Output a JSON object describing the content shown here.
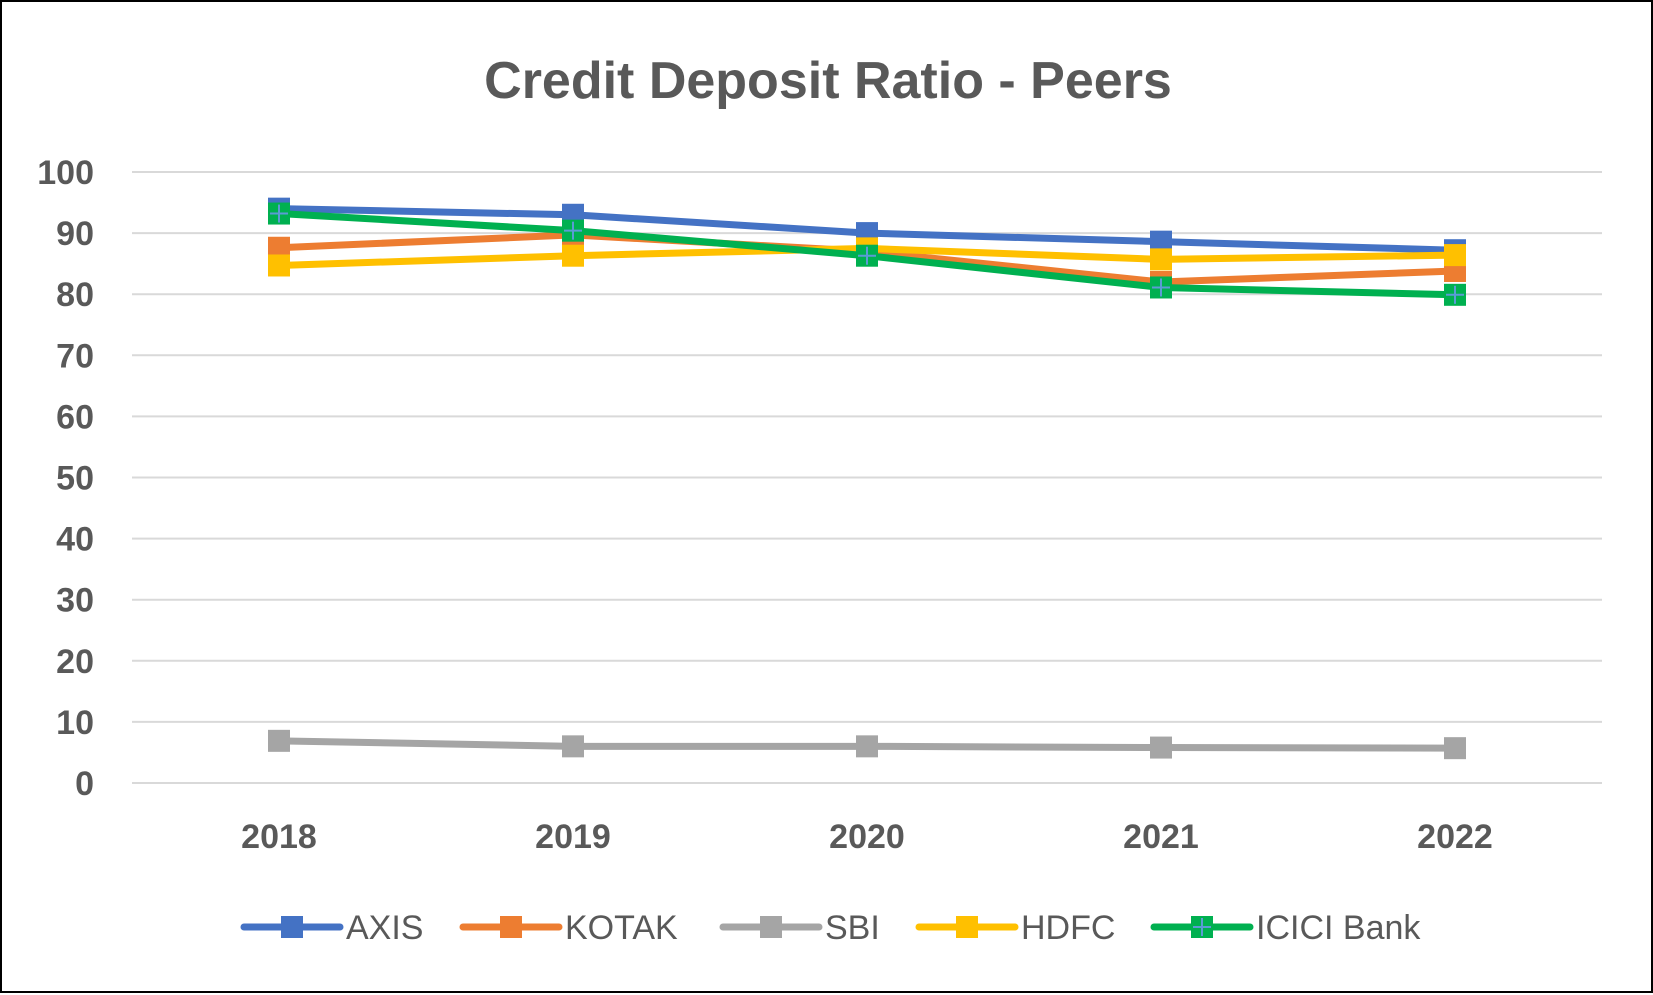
{
  "chart_data": {
    "type": "line",
    "title": "Credit Deposit Ratio - Peers",
    "xlabel": "",
    "ylabel": "",
    "categories": [
      "2018",
      "2019",
      "2020",
      "2021",
      "2022"
    ],
    "ylim": [
      0,
      100
    ],
    "yticks": [
      "0",
      "10",
      "20",
      "30",
      "40",
      "50",
      "60",
      "70",
      "80",
      "90",
      "100"
    ],
    "grid": true,
    "legend_position": "bottom",
    "series": [
      {
        "name": "AXIS",
        "values": [
          94,
          93,
          90,
          88.6,
          87.2
        ],
        "color": "#4472c4",
        "marker": "square"
      },
      {
        "name": "KOTAK",
        "values": [
          87.6,
          89.7,
          87,
          82,
          83.8
        ],
        "color": "#ed7d31",
        "marker": "square"
      },
      {
        "name": "SBI",
        "values": [
          6.9,
          6,
          6,
          5.8,
          5.7
        ],
        "color": "#a5a5a5",
        "marker": "square"
      },
      {
        "name": "HDFC",
        "values": [
          84.7,
          86.3,
          87.5,
          85.7,
          86.4
        ],
        "color": "#ffc000",
        "marker": "square"
      },
      {
        "name": "ICICI Bank",
        "values": [
          93.2,
          90.4,
          86.3,
          81.1,
          79.9
        ],
        "color": "#00b050",
        "marker": "square-plus",
        "marker_cross_color": "#5b9bd5"
      }
    ]
  }
}
